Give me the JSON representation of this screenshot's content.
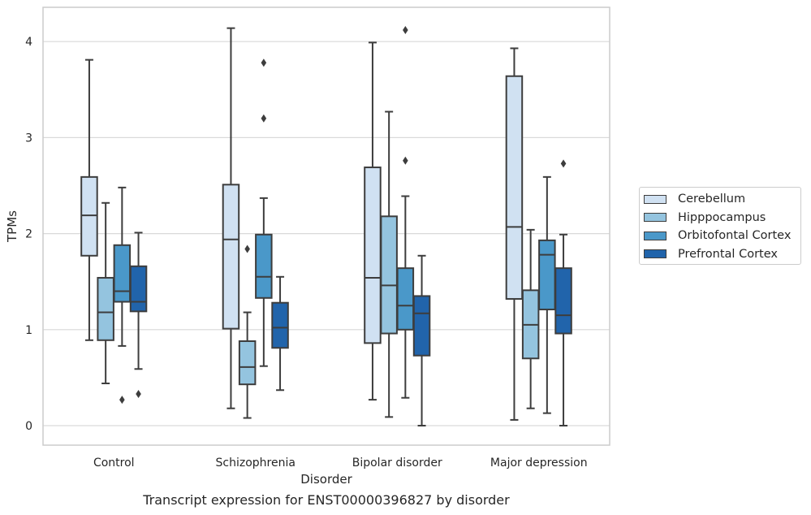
{
  "caption": "Transcript expression for ENST00000396827 by disorder",
  "chart_data": {
    "type": "box",
    "title": "",
    "xlabel": "Disorder",
    "ylabel": "TPMs",
    "ylim": [
      -0.2,
      4.37
    ],
    "yticks": [
      0,
      1,
      2,
      3,
      4
    ],
    "grid": "horizontal",
    "legend_position": "right",
    "categories": [
      "Control",
      "Schizophrenia",
      "Bipolar disorder",
      "Major depression"
    ],
    "series": [
      {
        "name": "Cerebellum",
        "color": "#d0e1f2",
        "boxes": [
          {
            "whisker_low": 0.89,
            "q1": 1.77,
            "median": 2.19,
            "q3": 2.59,
            "whisker_high": 3.81,
            "outliers": []
          },
          {
            "whisker_low": 0.18,
            "q1": 1.01,
            "median": 1.94,
            "q3": 2.51,
            "whisker_high": 4.14,
            "outliers": []
          },
          {
            "whisker_low": 0.27,
            "q1": 0.86,
            "median": 1.54,
            "q3": 2.69,
            "whisker_high": 3.99,
            "outliers": []
          },
          {
            "whisker_low": 0.06,
            "q1": 1.32,
            "median": 2.07,
            "q3": 3.64,
            "whisker_high": 3.93,
            "outliers": []
          }
        ]
      },
      {
        "name": "Hipppocampus",
        "color": "#94c4df",
        "boxes": [
          {
            "whisker_low": 0.44,
            "q1": 0.89,
            "median": 1.18,
            "q3": 1.54,
            "whisker_high": 2.32,
            "outliers": []
          },
          {
            "whisker_low": 0.08,
            "q1": 0.43,
            "median": 0.61,
            "q3": 0.88,
            "whisker_high": 1.18,
            "outliers": [
              1.84
            ]
          },
          {
            "whisker_low": 0.09,
            "q1": 0.96,
            "median": 1.46,
            "q3": 2.18,
            "whisker_high": 3.27,
            "outliers": []
          },
          {
            "whisker_low": 0.18,
            "q1": 0.7,
            "median": 1.05,
            "q3": 1.41,
            "whisker_high": 2.04,
            "outliers": []
          }
        ]
      },
      {
        "name": "Orbitofontal Cortex",
        "color": "#4a98c9",
        "boxes": [
          {
            "whisker_low": 0.83,
            "q1": 1.29,
            "median": 1.4,
            "q3": 1.88,
            "whisker_high": 2.48,
            "outliers": [
              0.27
            ]
          },
          {
            "whisker_low": 0.62,
            "q1": 1.33,
            "median": 1.55,
            "q3": 1.99,
            "whisker_high": 2.37,
            "outliers": [
              3.78,
              3.2
            ]
          },
          {
            "whisker_low": 0.29,
            "q1": 1.0,
            "median": 1.25,
            "q3": 1.64,
            "whisker_high": 2.39,
            "outliers": [
              4.12,
              2.76
            ]
          },
          {
            "whisker_low": 0.13,
            "q1": 1.21,
            "median": 1.78,
            "q3": 1.93,
            "whisker_high": 2.59,
            "outliers": []
          }
        ]
      },
      {
        "name": "Prefrontal Cortex",
        "color": "#2164ab",
        "boxes": [
          {
            "whisker_low": 0.59,
            "q1": 1.19,
            "median": 1.29,
            "q3": 1.66,
            "whisker_high": 2.01,
            "outliers": [
              0.33
            ]
          },
          {
            "whisker_low": 0.37,
            "q1": 0.81,
            "median": 1.02,
            "q3": 1.28,
            "whisker_high": 1.55,
            "outliers": []
          },
          {
            "whisker_low": 0.0,
            "q1": 0.73,
            "median": 1.17,
            "q3": 1.35,
            "whisker_high": 1.77,
            "outliers": []
          },
          {
            "whisker_low": 0.0,
            "q1": 0.96,
            "median": 1.15,
            "q3": 1.64,
            "whisker_high": 1.99,
            "outliers": [
              2.73
            ]
          }
        ]
      }
    ]
  }
}
